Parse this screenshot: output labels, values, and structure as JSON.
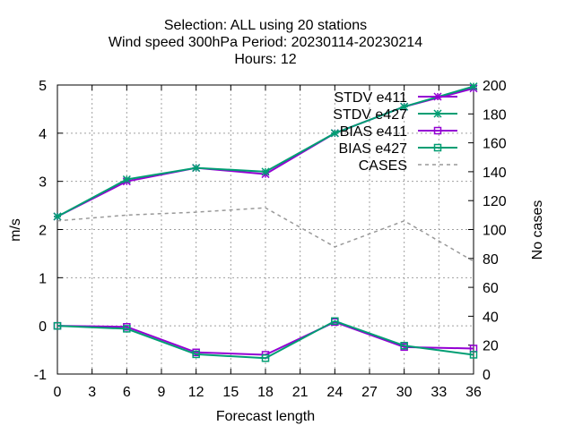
{
  "chart_data": {
    "type": "line",
    "title_lines": [
      "Selection: ALL using    20 stations",
      "Wind speed 300hPa   Period: 20230114-20230214",
      "Hours:  12"
    ],
    "xlabel": "Forecast length",
    "ylabel": "m/s",
    "y2label": "No cases",
    "xlim": [
      0,
      36
    ],
    "ylim": [
      -1,
      5
    ],
    "y2lim": [
      0,
      200
    ],
    "x_ticks": [
      0,
      3,
      6,
      9,
      12,
      15,
      18,
      21,
      24,
      27,
      30,
      33,
      36
    ],
    "y_ticks": [
      -1,
      0,
      1,
      2,
      3,
      4,
      5
    ],
    "y2_ticks": [
      0,
      20,
      40,
      60,
      80,
      100,
      120,
      140,
      160,
      180,
      200
    ],
    "grid": true,
    "legend_position": "top-right",
    "series": [
      {
        "name": "STDV e411",
        "axis": "y",
        "color": "#9400d3",
        "marker": "x-star",
        "dashed": false,
        "x": [
          0,
          6,
          12,
          18,
          24,
          30,
          36
        ],
        "values": [
          2.27,
          3.0,
          3.28,
          3.15,
          4.0,
          4.55,
          4.93
        ]
      },
      {
        "name": "STDV e427",
        "axis": "y",
        "color": "#009e73",
        "marker": "x-star",
        "dashed": false,
        "x": [
          0,
          6,
          12,
          18,
          24,
          30,
          36
        ],
        "values": [
          2.27,
          3.04,
          3.28,
          3.2,
          4.0,
          4.55,
          4.97
        ]
      },
      {
        "name": "BIAS e411",
        "axis": "y",
        "color": "#9400d3",
        "marker": "square",
        "dashed": false,
        "x": [
          0,
          6,
          12,
          18,
          24,
          30,
          36
        ],
        "values": [
          0.0,
          -0.02,
          -0.55,
          -0.6,
          0.08,
          -0.44,
          -0.47
        ]
      },
      {
        "name": "BIAS e427",
        "axis": "y",
        "color": "#009e73",
        "marker": "square",
        "dashed": false,
        "x": [
          0,
          6,
          12,
          18,
          24,
          30,
          36
        ],
        "values": [
          0.0,
          -0.06,
          -0.59,
          -0.67,
          0.1,
          -0.41,
          -0.6
        ]
      },
      {
        "name": "CASES",
        "axis": "y2",
        "color": "#999999",
        "marker": "none",
        "dashed": true,
        "x": [
          0,
          6,
          12,
          18,
          24,
          30,
          36
        ],
        "values": [
          106,
          110,
          112,
          115,
          88,
          106,
          78
        ]
      }
    ]
  }
}
